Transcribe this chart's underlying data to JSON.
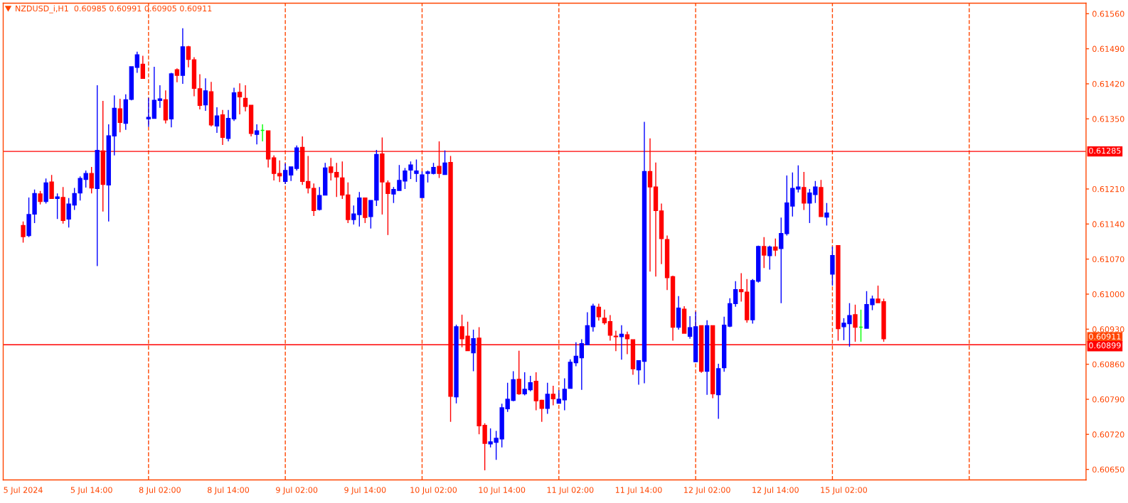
{
  "chart_data": {
    "type": "candlestick",
    "title": "NZDUSD_i,H1  0.60985 0.60991 0.60905 0.60911",
    "categories": [
      "5 Jul 2024",
      null,
      null,
      null,
      null,
      null,
      null,
      null,
      null,
      null,
      null,
      null,
      "5 Jul 14:00",
      null,
      null,
      null,
      null,
      null,
      null,
      null,
      null,
      null,
      null,
      null,
      "8 Jul 02:00",
      null,
      null,
      null,
      null,
      null,
      null,
      null,
      null,
      null,
      null,
      null,
      "8 Jul 14:00",
      null,
      null,
      null,
      null,
      null,
      null,
      null,
      null,
      null,
      null,
      null,
      "9 Jul 02:00",
      null,
      null,
      null,
      null,
      null,
      null,
      null,
      null,
      null,
      null,
      null,
      "9 Jul 14:00",
      null,
      null,
      null,
      null,
      null,
      null,
      null,
      null,
      null,
      null,
      null,
      "10 Jul 02:00",
      null,
      null,
      null,
      null,
      null,
      null,
      null,
      null,
      null,
      null,
      null,
      "10 Jul 14:00",
      null,
      null,
      null,
      null,
      null,
      null,
      null,
      null,
      null,
      null,
      null,
      "11 Jul 02:00",
      null,
      null,
      null,
      null,
      null,
      null,
      null,
      null,
      null,
      null,
      null,
      "11 Jul 14:00",
      null,
      null,
      null,
      null,
      null,
      null,
      null,
      null,
      null,
      null,
      null,
      "12 Jul 02:00",
      null,
      null,
      null,
      null,
      null,
      null,
      null,
      null,
      null,
      null,
      null,
      "12 Jul 14:00",
      null,
      null,
      null,
      null,
      null,
      null,
      null,
      null,
      null,
      null,
      null,
      "15 Jul 02:00",
      null,
      null,
      null,
      null,
      null,
      null,
      null,
      null,
      null,
      null,
      null,
      null,
      null,
      null,
      null,
      null,
      null,
      null,
      null,
      null,
      null,
      null,
      null,
      null,
      null,
      null,
      null,
      null,
      null,
      null,
      null,
      null,
      null,
      null,
      null,
      null,
      null,
      null,
      null,
      null,
      null,
      null
    ],
    "ohlc": [
      [
        0.61137,
        0.61145,
        0.61103,
        0.61115
      ],
      [
        0.61117,
        0.61193,
        0.61114,
        0.61159
      ],
      [
        0.6116,
        0.61209,
        0.61142,
        0.61201
      ],
      [
        0.612,
        0.61206,
        0.61179,
        0.61185
      ],
      [
        0.61185,
        0.61231,
        0.61181,
        0.61222
      ],
      [
        0.61224,
        0.61238,
        0.6119,
        0.61191
      ],
      [
        0.61191,
        0.61201,
        0.6115,
        0.61194
      ],
      [
        0.61193,
        0.61214,
        0.61141,
        0.61147
      ],
      [
        0.6115,
        0.61192,
        0.61133,
        0.6118
      ],
      [
        0.61178,
        0.61212,
        0.61168,
        0.61201
      ],
      [
        0.61202,
        0.61235,
        0.61187,
        0.61231
      ],
      [
        0.61229,
        0.61247,
        0.61213,
        0.61241
      ],
      [
        0.61241,
        0.61254,
        0.61201,
        0.61212
      ],
      [
        0.61211,
        0.61417,
        0.61056,
        0.61287
      ],
      [
        0.61286,
        0.61386,
        0.61165,
        0.61219
      ],
      [
        0.61218,
        0.61339,
        0.61145,
        0.61316
      ],
      [
        0.61316,
        0.61397,
        0.61277,
        0.61371
      ],
      [
        0.6137,
        0.6139,
        0.61323,
        0.61343
      ],
      [
        0.61341,
        0.61399,
        0.61328,
        0.61388
      ],
      [
        0.61389,
        0.61454,
        0.61387,
        0.61454
      ],
      [
        0.61453,
        0.61484,
        0.61442,
        0.61478
      ],
      [
        0.61459,
        0.61476,
        0.61431,
        0.61431
      ],
      [
        0.6135,
        0.61392,
        0.61334,
        0.61353
      ],
      [
        0.61351,
        0.61454,
        0.61351,
        0.61387
      ],
      [
        0.61387,
        0.61417,
        0.61372,
        0.6139
      ],
      [
        0.61388,
        0.61407,
        0.61341,
        0.61348
      ],
      [
        0.6135,
        0.61442,
        0.61333,
        0.6144
      ],
      [
        0.61448,
        0.61451,
        0.61423,
        0.61437
      ],
      [
        0.61437,
        0.61531,
        0.6142,
        0.61494
      ],
      [
        0.61494,
        0.61496,
        0.61453,
        0.61469
      ],
      [
        0.61468,
        0.61473,
        0.61395,
        0.61411
      ],
      [
        0.6141,
        0.61439,
        0.61369,
        0.61377
      ],
      [
        0.61378,
        0.61431,
        0.61366,
        0.61406
      ],
      [
        0.61404,
        0.61424,
        0.61335,
        0.61338
      ],
      [
        0.61336,
        0.61373,
        0.61322,
        0.61356
      ],
      [
        0.61358,
        0.61368,
        0.61298,
        0.61313
      ],
      [
        0.61311,
        0.61368,
        0.61305,
        0.61351
      ],
      [
        0.6135,
        0.61412,
        0.61346,
        0.61402
      ],
      [
        0.61403,
        0.61421,
        0.61359,
        0.61394
      ],
      [
        0.61391,
        0.61417,
        0.61365,
        0.61375
      ],
      [
        0.61377,
        0.61377,
        0.61315,
        0.61321
      ],
      [
        0.61319,
        0.61339,
        0.61299,
        0.61326
      ],
      [
        0.61327,
        0.61339,
        0.61305,
        0.61327
      ],
      [
        0.61326,
        0.61326,
        0.61253,
        0.6127
      ],
      [
        0.61272,
        0.61277,
        0.61227,
        0.61241
      ],
      [
        0.61241,
        0.61267,
        0.61224,
        0.61236
      ],
      [
        0.61225,
        0.61261,
        0.6122,
        0.61247
      ],
      [
        0.61238,
        0.61254,
        0.61226,
        0.61254
      ],
      [
        0.61251,
        0.61297,
        0.61247,
        0.61292
      ],
      [
        0.61293,
        0.61315,
        0.61218,
        0.61225
      ],
      [
        0.61225,
        0.61276,
        0.61201,
        0.61212
      ],
      [
        0.61211,
        0.61221,
        0.61156,
        0.61167
      ],
      [
        0.61169,
        0.61214,
        0.61167,
        0.61197
      ],
      [
        0.61198,
        0.61262,
        0.61198,
        0.61252
      ],
      [
        0.61254,
        0.61272,
        0.61227,
        0.61243
      ],
      [
        0.61243,
        0.61262,
        0.61194,
        0.61234
      ],
      [
        0.61232,
        0.61265,
        0.6119,
        0.61198
      ],
      [
        0.61198,
        0.61223,
        0.61142,
        0.61149
      ],
      [
        0.61149,
        0.61177,
        0.61139,
        0.6116
      ],
      [
        0.61159,
        0.61204,
        0.61135,
        0.61192
      ],
      [
        0.61192,
        0.61192,
        0.61142,
        0.61153
      ],
      [
        0.61155,
        0.61187,
        0.61131,
        0.61187
      ],
      [
        0.61188,
        0.61288,
        0.61176,
        0.61279
      ],
      [
        0.6128,
        0.61313,
        0.61159,
        0.61224
      ],
      [
        0.61222,
        0.61227,
        0.61118,
        0.61201
      ],
      [
        0.612,
        0.61214,
        0.61182,
        0.61209
      ],
      [
        0.61207,
        0.61258,
        0.61207,
        0.61227
      ],
      [
        0.61226,
        0.61252,
        0.6121,
        0.61246
      ],
      [
        0.61248,
        0.61265,
        0.6123,
        0.61258
      ],
      [
        0.61241,
        0.61269,
        0.61224,
        0.61246
      ],
      [
        0.61193,
        0.61245,
        0.61193,
        0.61238
      ],
      [
        0.61241,
        0.61247,
        0.61223,
        0.61244
      ],
      [
        0.61241,
        0.61262,
        0.61239,
        0.61253
      ],
      [
        0.61255,
        0.61305,
        0.61232,
        0.61241
      ],
      [
        0.61239,
        0.61287,
        0.61239,
        0.61262
      ],
      [
        0.61263,
        0.61276,
        0.60745,
        0.60796
      ],
      [
        0.60795,
        0.60939,
        0.60782,
        0.60935
      ],
      [
        0.60935,
        0.60959,
        0.60894,
        0.60911
      ],
      [
        0.60916,
        0.60945,
        0.60887,
        0.60887
      ],
      [
        0.60883,
        0.60929,
        0.60846,
        0.60911
      ],
      [
        0.60912,
        0.60934,
        0.6072,
        0.60737
      ],
      [
        0.60738,
        0.60742,
        0.60648,
        0.60702
      ],
      [
        0.60701,
        0.60732,
        0.60694,
        0.60705
      ],
      [
        0.60704,
        0.60727,
        0.60669,
        0.60712
      ],
      [
        0.60711,
        0.60781,
        0.60694,
        0.60773
      ],
      [
        0.60771,
        0.60823,
        0.60765,
        0.6079
      ],
      [
        0.60788,
        0.60846,
        0.60786,
        0.60829
      ],
      [
        0.6083,
        0.60887,
        0.60799,
        0.60801
      ],
      [
        0.60801,
        0.60844,
        0.60798,
        0.6081
      ],
      [
        0.60809,
        0.60837,
        0.60806,
        0.60823
      ],
      [
        0.60826,
        0.60844,
        0.60768,
        0.60787
      ],
      [
        0.60788,
        0.60789,
        0.60745,
        0.60772
      ],
      [
        0.60772,
        0.60823,
        0.60761,
        0.608
      ],
      [
        0.608,
        0.60817,
        0.60778,
        0.60791
      ],
      [
        0.60782,
        0.60808,
        0.60782,
        0.6079
      ],
      [
        0.60789,
        0.60832,
        0.60768,
        0.6081
      ],
      [
        0.60812,
        0.6087,
        0.60812,
        0.60864
      ],
      [
        0.60863,
        0.60904,
        0.60856,
        0.60876
      ],
      [
        0.60873,
        0.6091,
        0.60809,
        0.60901
      ],
      [
        0.60899,
        0.60964,
        0.60899,
        0.60937
      ],
      [
        0.60935,
        0.60981,
        0.60925,
        0.60976
      ],
      [
        0.60974,
        0.60981,
        0.60947,
        0.60955
      ],
      [
        0.60952,
        0.60969,
        0.60939,
        0.60943
      ],
      [
        0.60945,
        0.60958,
        0.60907,
        0.60918
      ],
      [
        0.60916,
        0.60927,
        0.60886,
        0.60915
      ],
      [
        0.60915,
        0.60938,
        0.60869,
        0.6092
      ],
      [
        0.60919,
        0.60925,
        0.6088,
        0.60911
      ],
      [
        0.60909,
        0.60909,
        0.60839,
        0.60851
      ],
      [
        0.60849,
        0.60867,
        0.60819,
        0.60867
      ],
      [
        0.60866,
        0.61344,
        0.60822,
        0.61245
      ],
      [
        0.61245,
        0.61311,
        0.61045,
        0.61214
      ],
      [
        0.61214,
        0.61263,
        0.61035,
        0.61167
      ],
      [
        0.61166,
        0.61181,
        0.6106,
        0.61111
      ],
      [
        0.61109,
        0.61117,
        0.61008,
        0.61033
      ],
      [
        0.61035,
        0.61037,
        0.60907,
        0.60934
      ],
      [
        0.60934,
        0.60996,
        0.60929,
        0.60972
      ],
      [
        0.6097,
        0.60976,
        0.60922,
        0.60922
      ],
      [
        0.60916,
        0.60956,
        0.60911,
        0.60933
      ],
      [
        0.60865,
        0.60965,
        0.60865,
        0.60935
      ],
      [
        0.60937,
        0.60937,
        0.60843,
        0.60846
      ],
      [
        0.60846,
        0.60948,
        0.60799,
        0.60937
      ],
      [
        0.60937,
        0.60937,
        0.60792,
        0.60801
      ],
      [
        0.60799,
        0.60861,
        0.60751,
        0.60851
      ],
      [
        0.60853,
        0.60955,
        0.60845,
        0.60938
      ],
      [
        0.60936,
        0.60992,
        0.60934,
        0.60981
      ],
      [
        0.60981,
        0.61026,
        0.60975,
        0.61009
      ],
      [
        0.61009,
        0.61042,
        0.60985,
        0.61005
      ],
      [
        0.61004,
        0.6103,
        0.60943,
        0.60949
      ],
      [
        0.60949,
        0.6103,
        0.60941,
        0.61027
      ],
      [
        0.61026,
        0.61097,
        0.61023,
        0.61095
      ],
      [
        0.61095,
        0.61114,
        0.61052,
        0.61078
      ],
      [
        0.61077,
        0.61097,
        0.61049,
        0.61094
      ],
      [
        0.61094,
        0.61111,
        0.61076,
        0.61088
      ],
      [
        0.61091,
        0.61153,
        0.60982,
        0.61121
      ],
      [
        0.61121,
        0.61237,
        0.61117,
        0.61182
      ],
      [
        0.61176,
        0.61243,
        0.61155,
        0.61211
      ],
      [
        0.6121,
        0.61257,
        0.61203,
        0.61214
      ],
      [
        0.61213,
        0.61244,
        0.61168,
        0.61182
      ],
      [
        0.61182,
        0.6121,
        0.61142,
        0.61202
      ],
      [
        0.61199,
        0.61226,
        0.61182,
        0.61214
      ],
      [
        0.61213,
        0.61228,
        0.61155,
        0.61155
      ],
      [
        0.61154,
        0.61182,
        0.61137,
        0.61162
      ],
      [
        0.6104,
        0.61095,
        0.61017,
        0.61077
      ],
      [
        0.61097,
        0.61097,
        0.60907,
        0.60931
      ],
      [
        0.60935,
        0.60952,
        0.60908,
        0.60942
      ],
      [
        0.60941,
        0.60982,
        0.60895,
        0.60957
      ],
      [
        0.60959,
        0.60979,
        0.60905,
        0.60934
      ],
      [
        0.60934,
        0.60969,
        0.60905,
        0.60934
      ],
      [
        0.60932,
        0.61006,
        0.60932,
        0.60979
      ],
      [
        0.60979,
        0.60997,
        0.60968,
        0.6099
      ],
      [
        0.6099,
        0.61017,
        0.60983,
        0.60983
      ],
      [
        0.60985,
        0.60991,
        0.60905,
        0.60911
      ],
      null,
      null,
      null,
      null,
      null,
      null,
      null,
      null,
      null,
      null,
      null,
      null,
      null,
      null,
      null,
      null,
      null,
      null,
      null,
      null,
      null,
      null,
      null,
      null,
      null,
      null,
      null,
      null,
      null,
      null,
      null,
      null,
      null,
      null,
      null
    ],
    "colors": [
      "#ff0000",
      "#0000ff",
      "#0000ff",
      "#ff0000",
      "#0000ff",
      "#ff0000",
      "#0000ff",
      "#ff0000",
      "#0000ff",
      "#0000ff",
      "#0000ff",
      "#0000ff",
      "#ff0000",
      "#0000ff",
      "#ff0000",
      "#0000ff",
      "#0000ff",
      "#ff0000",
      "#0000ff",
      "#0000ff",
      "#0000ff",
      "#ff0000",
      "#0000ff",
      "#0000ff",
      "#0000ff",
      "#ff0000",
      "#0000ff",
      "#ff0000",
      "#0000ff",
      "#ff0000",
      "#ff0000",
      "#ff0000",
      "#0000ff",
      "#ff0000",
      "#0000ff",
      "#ff0000",
      "#0000ff",
      "#0000ff",
      "#ff0000",
      "#ff0000",
      "#ff0000",
      "#0000ff",
      "#00ff00",
      "#ff0000",
      "#ff0000",
      "#ff0000",
      "#0000ff",
      "#0000ff",
      "#0000ff",
      "#ff0000",
      "#ff0000",
      "#ff0000",
      "#0000ff",
      "#0000ff",
      "#ff0000",
      "#ff0000",
      "#ff0000",
      "#ff0000",
      "#0000ff",
      "#0000ff",
      "#ff0000",
      "#0000ff",
      "#0000ff",
      "#ff0000",
      "#ff0000",
      "#0000ff",
      "#0000ff",
      "#0000ff",
      "#0000ff",
      "#0000ff",
      "#0000ff",
      "#0000ff",
      "#0000ff",
      "#ff0000",
      "#0000ff",
      "#ff0000",
      "#0000ff",
      "#ff0000",
      "#ff0000",
      "#0000ff",
      "#ff0000",
      "#ff0000",
      "#0000ff",
      "#0000ff",
      "#0000ff",
      "#0000ff",
      "#0000ff",
      "#ff0000",
      "#0000ff",
      "#0000ff",
      "#ff0000",
      "#ff0000",
      "#0000ff",
      "#ff0000",
      "#0000ff",
      "#0000ff",
      "#0000ff",
      "#0000ff",
      "#0000ff",
      "#0000ff",
      "#0000ff",
      "#ff0000",
      "#ff0000",
      "#ff0000",
      "#ff0000",
      "#0000ff",
      "#ff0000",
      "#ff0000",
      "#0000ff",
      "#0000ff",
      "#ff0000",
      "#ff0000",
      "#ff0000",
      "#ff0000",
      "#ff0000",
      "#0000ff",
      "#ff0000",
      "#0000ff",
      "#0000ff",
      "#ff0000",
      "#0000ff",
      "#ff0000",
      "#0000ff",
      "#0000ff",
      "#0000ff",
      "#0000ff",
      "#ff0000",
      "#ff0000",
      "#0000ff",
      "#0000ff",
      "#ff0000",
      "#0000ff",
      "#ff0000",
      "#0000ff",
      "#0000ff",
      "#0000ff",
      "#0000ff",
      "#ff0000",
      "#0000ff",
      "#0000ff",
      "#ff0000",
      "#0000ff",
      "#0000ff",
      "#ff0000",
      "#0000ff",
      "#0000ff",
      "#ff0000",
      "#00ff00",
      "#0000ff",
      "#0000ff",
      "#ff0000",
      "#ff0000",
      null,
      null,
      null,
      null,
      null,
      null,
      null,
      null,
      null,
      null,
      null,
      null,
      null,
      null,
      null,
      null,
      null,
      null,
      null,
      null,
      null,
      null,
      null,
      null,
      null,
      null,
      null,
      null,
      null,
      null,
      null,
      null,
      null,
      null,
      null
    ],
    "ylim": [
      0.60629,
      0.61581
    ],
    "yticks": [
      {
        "value": 0.6156,
        "label": "0.61560"
      },
      {
        "value": 0.6149,
        "label": "0.61490"
      },
      {
        "value": 0.6142,
        "label": "0.61420"
      },
      {
        "value": 0.6135,
        "label": "0.61350"
      },
      {
        "value": 0.6121,
        "label": "0.61210"
      },
      {
        "value": 0.6114,
        "label": "0.61140"
      },
      {
        "value": 0.6107,
        "label": "0.61070"
      },
      {
        "value": 0.61,
        "label": "0.61000"
      },
      {
        "value": 0.6093,
        "label": "0.60930"
      },
      {
        "value": 0.6086,
        "label": "0.60860"
      },
      {
        "value": 0.6079,
        "label": "0.60790"
      },
      {
        "value": 0.6072,
        "label": "0.60720"
      },
      {
        "value": 0.6065,
        "label": "0.60650"
      }
    ],
    "ref_lines": [
      {
        "axis": "y",
        "value": 0.61285,
        "label": "0.61285",
        "color": "#ff0000",
        "line_style": "solid"
      },
      {
        "axis": "y",
        "value": 0.60899,
        "label": "0.60899",
        "color": "#ff0000",
        "line_style": "solid"
      }
    ],
    "annotations": [
      "0.60911"
    ]
  }
}
